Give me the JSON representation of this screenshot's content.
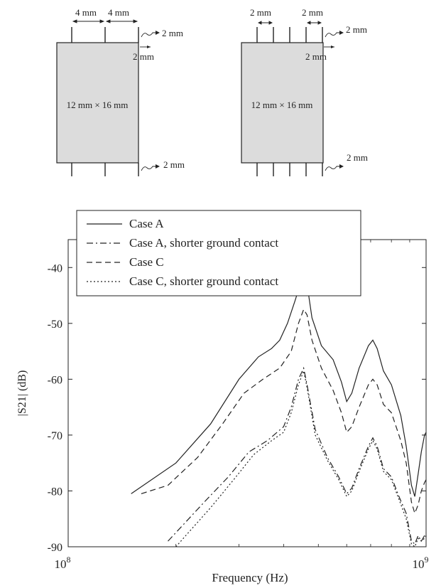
{
  "diagrams": [
    {
      "pitch_label": "4 mm",
      "lead_length_label": "2 mm",
      "lead_offset_label": "2 mm",
      "body_label": "12 mm × 16 mm",
      "bottom_lead_label": "2 mm"
    },
    {
      "pitch_label": "2 mm",
      "lead_length_label": "2 mm",
      "lead_offset_label": "2 mm",
      "body_label": "12 mm × 16 mm",
      "bottom_lead_label": "2 mm"
    }
  ],
  "chart_data": {
    "type": "line",
    "title": "",
    "xlabel": "Frequency (Hz)",
    "ylabel": "|S21| (dB)",
    "x_scale": "log",
    "xlim": [
      100000000,
      1000000000
    ],
    "ylim": [
      -90,
      -35
    ],
    "x_ticks": [
      {
        "value": 100000000,
        "base": "10",
        "exp": "8"
      },
      {
        "value": 1000000000,
        "base": "10",
        "exp": "9"
      }
    ],
    "y_ticks": [
      -40,
      -50,
      -60,
      -70,
      -80,
      -90
    ],
    "grid": false,
    "legend_position": "top",
    "series": [
      {
        "name": "Case A",
        "color": "#222222",
        "dash": "solid",
        "points": [
          [
            150000000,
            -80.5
          ],
          [
            200000000,
            -75
          ],
          [
            250000000,
            -68
          ],
          [
            300000000,
            -60
          ],
          [
            340000000,
            -56
          ],
          [
            370000000,
            -54.5
          ],
          [
            390000000,
            -53
          ],
          [
            410000000,
            -50
          ],
          [
            430000000,
            -46
          ],
          [
            445000000,
            -43
          ],
          [
            455000000,
            -41.7
          ],
          [
            465000000,
            -43
          ],
          [
            480000000,
            -49
          ],
          [
            510000000,
            -54
          ],
          [
            550000000,
            -56.5
          ],
          [
            580000000,
            -60.5
          ],
          [
            600000000,
            -64
          ],
          [
            620000000,
            -62.5
          ],
          [
            650000000,
            -58
          ],
          [
            690000000,
            -54
          ],
          [
            710000000,
            -53
          ],
          [
            730000000,
            -54.5
          ],
          [
            760000000,
            -58.5
          ],
          [
            800000000,
            -61
          ],
          [
            850000000,
            -66.5
          ],
          [
            880000000,
            -72
          ],
          [
            910000000,
            -79
          ],
          [
            930000000,
            -81
          ],
          [
            950000000,
            -77
          ],
          [
            970000000,
            -73
          ],
          [
            990000000,
            -70
          ],
          [
            1000000000,
            -69.5
          ]
        ]
      },
      {
        "name": "Case A, shorter ground contact",
        "color": "#222222",
        "dash": "dashdot",
        "points": [
          [
            190000000,
            -89
          ],
          [
            210000000,
            -86
          ],
          [
            240000000,
            -82
          ],
          [
            280000000,
            -77.5
          ],
          [
            320000000,
            -73
          ],
          [
            360000000,
            -71
          ],
          [
            400000000,
            -68.5
          ],
          [
            420000000,
            -65
          ],
          [
            440000000,
            -60
          ],
          [
            455000000,
            -58
          ],
          [
            465000000,
            -61
          ],
          [
            490000000,
            -69
          ],
          [
            530000000,
            -74
          ],
          [
            570000000,
            -77.5
          ],
          [
            600000000,
            -80.5
          ],
          [
            620000000,
            -79.5
          ],
          [
            650000000,
            -76
          ],
          [
            690000000,
            -72
          ],
          [
            710000000,
            -70.5
          ],
          [
            730000000,
            -72
          ],
          [
            760000000,
            -76
          ],
          [
            800000000,
            -77.5
          ],
          [
            840000000,
            -81
          ],
          [
            880000000,
            -84
          ],
          [
            910000000,
            -89
          ],
          [
            930000000,
            -89.5
          ],
          [
            950000000,
            -88
          ],
          [
            970000000,
            -89
          ],
          [
            990000000,
            -88
          ],
          [
            1000000000,
            -87.5
          ]
        ]
      },
      {
        "name": "Case C",
        "color": "#222222",
        "dash": "dashed",
        "points": [
          [
            160000000,
            -80.5
          ],
          [
            190000000,
            -79
          ],
          [
            230000000,
            -74
          ],
          [
            270000000,
            -68
          ],
          [
            310000000,
            -62.5
          ],
          [
            350000000,
            -60
          ],
          [
            390000000,
            -58
          ],
          [
            420000000,
            -55
          ],
          [
            440000000,
            -50
          ],
          [
            455000000,
            -47.5
          ],
          [
            465000000,
            -48.5
          ],
          [
            480000000,
            -53
          ],
          [
            510000000,
            -58
          ],
          [
            550000000,
            -62
          ],
          [
            580000000,
            -66
          ],
          [
            600000000,
            -69.5
          ],
          [
            620000000,
            -68.5
          ],
          [
            650000000,
            -65
          ],
          [
            690000000,
            -61
          ],
          [
            710000000,
            -60
          ],
          [
            730000000,
            -61
          ],
          [
            760000000,
            -64.5
          ],
          [
            800000000,
            -66
          ],
          [
            850000000,
            -71
          ],
          [
            880000000,
            -75
          ],
          [
            910000000,
            -82
          ],
          [
            930000000,
            -84
          ],
          [
            950000000,
            -82.5
          ],
          [
            970000000,
            -80
          ],
          [
            990000000,
            -78.5
          ],
          [
            1000000000,
            -78
          ]
        ]
      },
      {
        "name": "Case C, shorter ground contact",
        "color": "#222222",
        "dash": "dotted",
        "points": [
          [
            200000000,
            -90
          ],
          [
            220000000,
            -87
          ],
          [
            250000000,
            -83
          ],
          [
            290000000,
            -78
          ],
          [
            330000000,
            -73.5
          ],
          [
            370000000,
            -71
          ],
          [
            400000000,
            -69.5
          ],
          [
            420000000,
            -66
          ],
          [
            440000000,
            -61
          ],
          [
            455000000,
            -58.5
          ],
          [
            465000000,
            -61.5
          ],
          [
            490000000,
            -70
          ],
          [
            530000000,
            -74.5
          ],
          [
            570000000,
            -78
          ],
          [
            600000000,
            -81
          ],
          [
            620000000,
            -80
          ],
          [
            650000000,
            -76.5
          ],
          [
            690000000,
            -72.5
          ],
          [
            710000000,
            -71
          ],
          [
            730000000,
            -72.5
          ],
          [
            760000000,
            -76.5
          ],
          [
            800000000,
            -78
          ],
          [
            840000000,
            -81.5
          ],
          [
            880000000,
            -85
          ],
          [
            910000000,
            -89.5
          ],
          [
            930000000,
            -90
          ],
          [
            950000000,
            -88.5
          ],
          [
            970000000,
            -89
          ],
          [
            990000000,
            -88.5
          ],
          [
            1000000000,
            -88
          ]
        ]
      }
    ]
  }
}
